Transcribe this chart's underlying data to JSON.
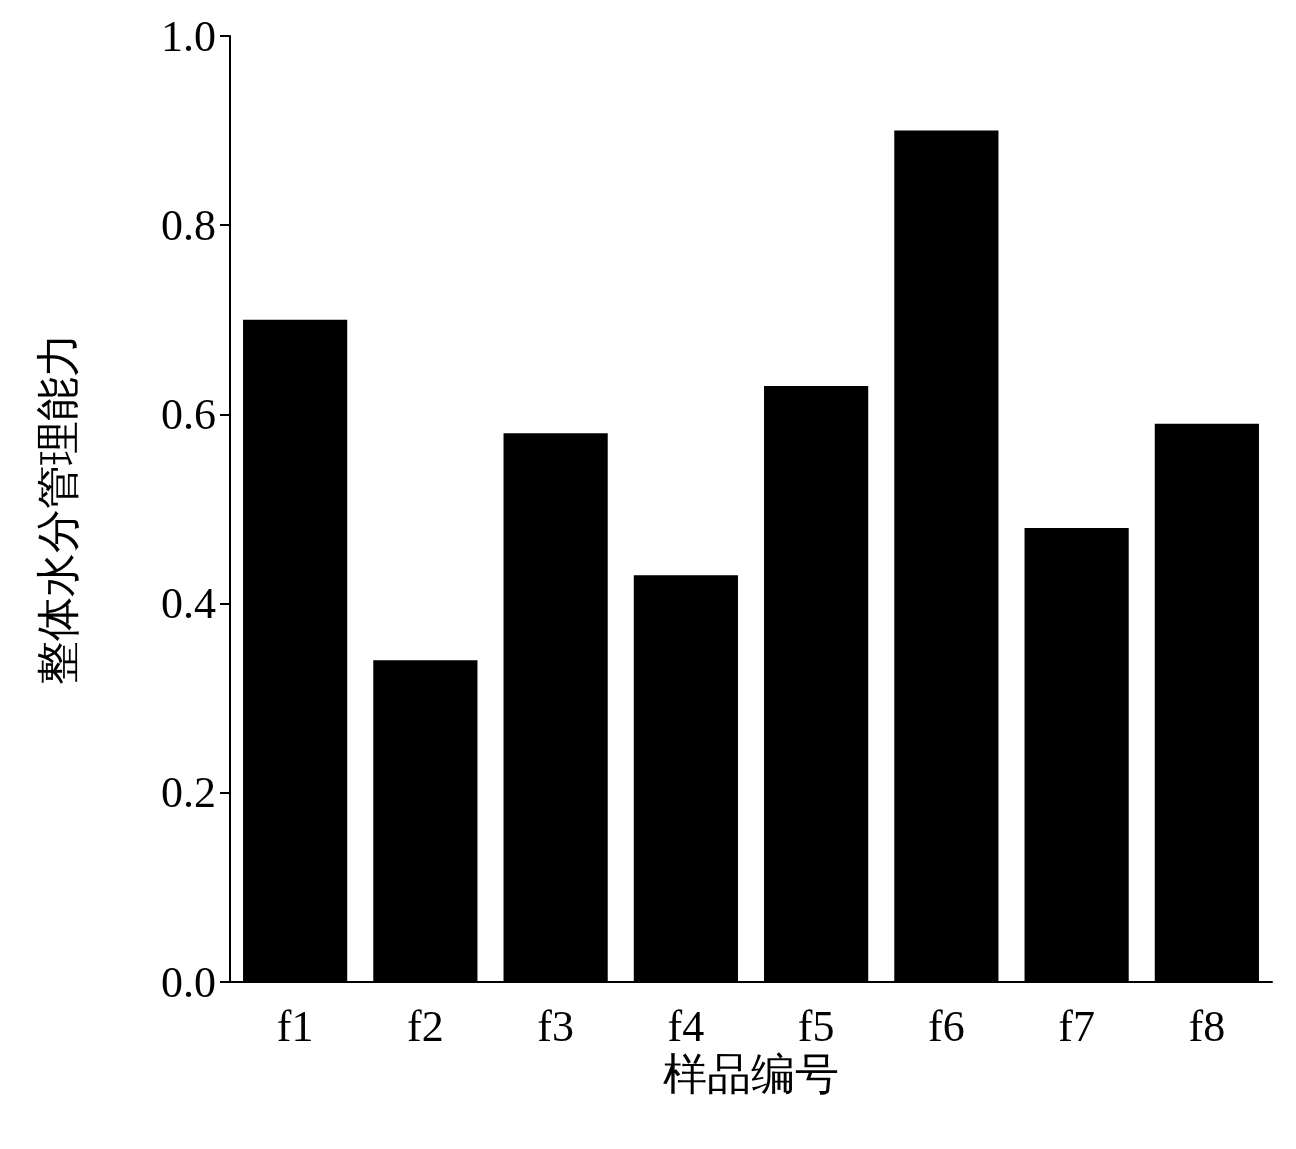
{
  "chart_data": {
    "type": "bar",
    "xlabel": "样品编号",
    "ylabel": "整体水分管理能力",
    "categories": [
      "f1",
      "f2",
      "f3",
      "f4",
      "f5",
      "f6",
      "f7",
      "f8"
    ],
    "values": [
      0.7,
      0.34,
      0.58,
      0.43,
      0.63,
      0.9,
      0.48,
      0.59
    ],
    "color": "#000000",
    "ylim": [
      0,
      1
    ],
    "yticks": [
      {
        "value": 0,
        "label": "0.0"
      },
      {
        "value": 0.2,
        "label": "0.2"
      },
      {
        "value": 0.4,
        "label": "0.4"
      },
      {
        "value": 0.6,
        "label": "0.6"
      },
      {
        "value": 0.8,
        "label": "0.8"
      },
      {
        "value": 1,
        "label": "1.0"
      }
    ],
    "grid": false
  }
}
